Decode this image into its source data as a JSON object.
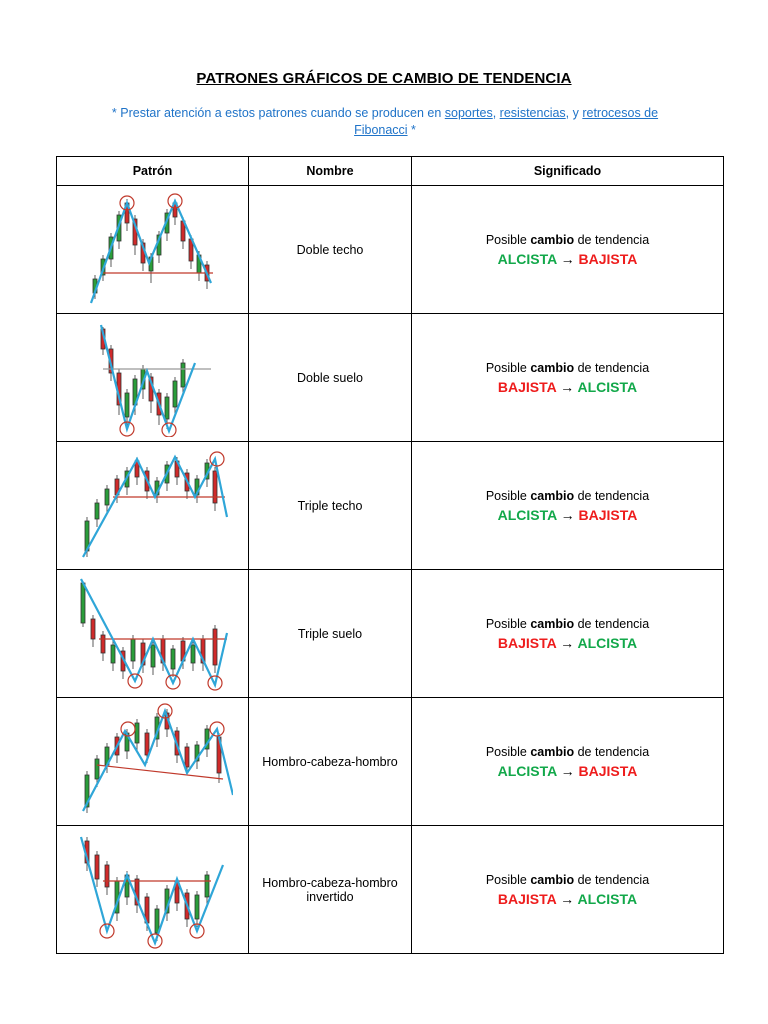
{
  "document": {
    "title": "PATRONES GRÁFICOS DE CAMBIO DE TENDENCIA",
    "note": {
      "prefix": "* Prestar atención a estos patrones cuando se producen en ",
      "link1": "soportes",
      "sep1": ", ",
      "link2": "resistencias",
      "sep2": ", y ",
      "link3": "retrocesos de Fibonacci",
      "suffix": " *"
    }
  },
  "table": {
    "headers": {
      "pattern": "Patrón",
      "name": "Nombre",
      "meaning": "Significado"
    },
    "rows": [
      {
        "chart_icon": "double-top-chart",
        "name": "Doble techo",
        "meaning_prefix": "Posible ",
        "meaning_bold": "cambio",
        "meaning_suffix": " de tendencia",
        "from": "ALCISTA",
        "arrow": "→",
        "to": "BAJISTA"
      },
      {
        "chart_icon": "double-bottom-chart",
        "name": "Doble suelo",
        "meaning_prefix": "Posible ",
        "meaning_bold": "cambio",
        "meaning_suffix": " de tendencia",
        "from": "BAJISTA",
        "arrow": "→",
        "to": "ALCISTA"
      },
      {
        "chart_icon": "triple-top-chart",
        "name": "Triple techo",
        "meaning_prefix": "Posible ",
        "meaning_bold": "cambio",
        "meaning_suffix": " de tendencia",
        "from": "ALCISTA",
        "arrow": "→",
        "to": "BAJISTA"
      },
      {
        "chart_icon": "triple-bottom-chart",
        "name": "Triple suelo",
        "meaning_prefix": "Posible ",
        "meaning_bold": "cambio",
        "meaning_suffix": " de tendencia",
        "from": "BAJISTA",
        "arrow": "→",
        "to": "ALCISTA"
      },
      {
        "chart_icon": "head-shoulders-chart",
        "name": "Hombro-cabeza-hombro",
        "meaning_prefix": "Posible ",
        "meaning_bold": "cambio",
        "meaning_suffix": " de tendencia",
        "from": "ALCISTA",
        "arrow": "→",
        "to": "BAJISTA"
      },
      {
        "chart_icon": "inverse-head-shoulders-chart",
        "name": "Hombro-cabeza-hombro invertido",
        "meaning_prefix": "Posible ",
        "meaning_bold": "cambio",
        "meaning_suffix": " de tendencia",
        "from": "BAJISTA",
        "arrow": "→",
        "to": "ALCISTA"
      }
    ]
  },
  "colors": {
    "alcista": "#12a84a",
    "bajista": "#ee1c1c",
    "note": "#1f73c8",
    "trendline": "#2fa6d8",
    "level": "#c0392b"
  }
}
